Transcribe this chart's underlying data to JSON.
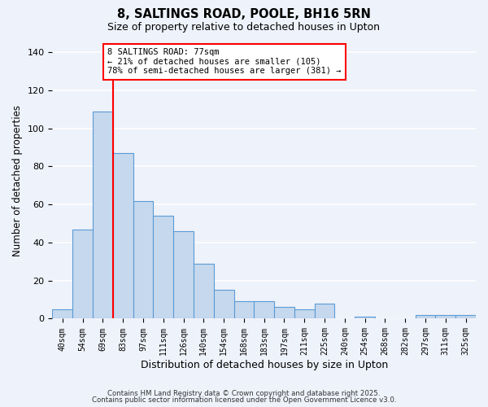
{
  "title": "8, SALTINGS ROAD, POOLE, BH16 5RN",
  "subtitle": "Size of property relative to detached houses in Upton",
  "xlabel": "Distribution of detached houses by size in Upton",
  "ylabel": "Number of detached properties",
  "categories": [
    "40sqm",
    "54sqm",
    "69sqm",
    "83sqm",
    "97sqm",
    "111sqm",
    "126sqm",
    "140sqm",
    "154sqm",
    "168sqm",
    "183sqm",
    "197sqm",
    "211sqm",
    "225sqm",
    "240sqm",
    "254sqm",
    "268sqm",
    "282sqm",
    "297sqm",
    "311sqm",
    "325sqm"
  ],
  "values": [
    5,
    47,
    109,
    87,
    62,
    54,
    46,
    29,
    15,
    9,
    9,
    6,
    5,
    8,
    0,
    1,
    0,
    0,
    2,
    2,
    2
  ],
  "bar_color": "#c5d8ed",
  "bar_edge_color": "#5b9bd5",
  "background_color": "#eef2fa",
  "grid_color": "#ffffff",
  "ylim": [
    0,
    145
  ],
  "yticks": [
    0,
    20,
    40,
    60,
    80,
    100,
    120,
    140
  ],
  "annotation_title": "8 SALTINGS ROAD: 77sqm",
  "annotation_line1": "← 21% of detached houses are smaller (105)",
  "annotation_line2": "78% of semi-detached houses are larger (381) →",
  "footer1": "Contains HM Land Registry data © Crown copyright and database right 2025.",
  "footer2": "Contains public sector information licensed under the Open Government Licence v3.0.",
  "red_line_index": 2.5
}
